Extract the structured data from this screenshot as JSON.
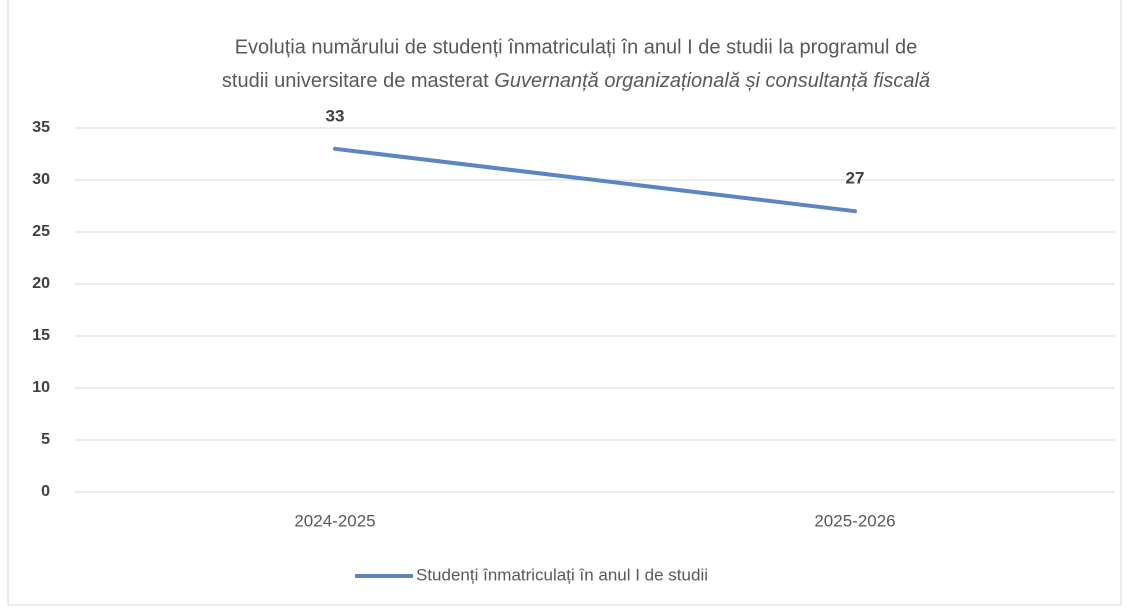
{
  "chart_data": {
    "type": "line",
    "title": [
      "Evoluția numărului de studenți înmatriculați în anul I de studii la programul de",
      "studii universitare de masterat",
      "Guvernanță organizațională și consultanță fiscală"
    ],
    "categories": [
      "2024-2025",
      "2025-2026"
    ],
    "series": [
      {
        "name": "Studenți înmatriculați în anul I de studii",
        "color": "#5b86c3",
        "values": [
          33,
          27
        ]
      }
    ],
    "ylim": [
      0,
      35
    ],
    "yticks": [
      0,
      5,
      10,
      15,
      20,
      25,
      30,
      35
    ],
    "grid": true,
    "legend": "bottom"
  }
}
